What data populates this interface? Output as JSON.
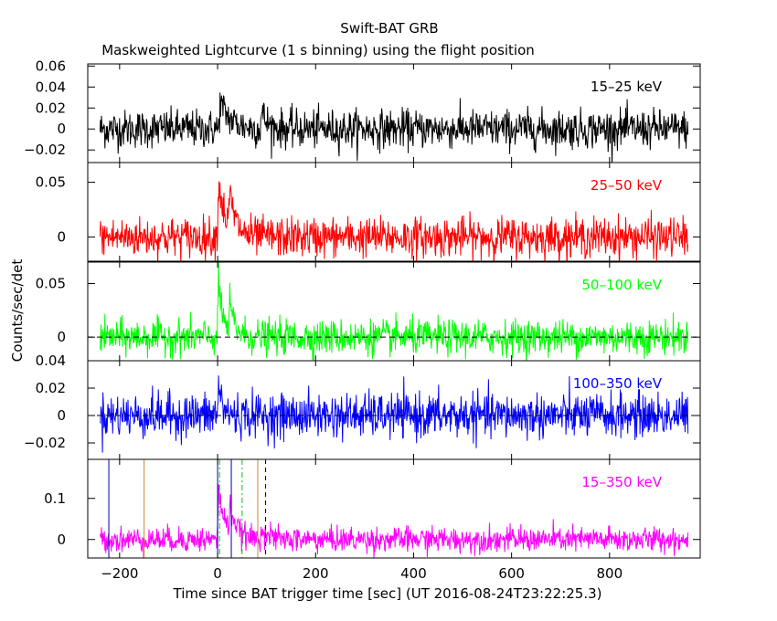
{
  "chart_data": {
    "type": "line",
    "title": "Swift-BAT GRB",
    "subtitle": "Maskweighted Lightcurve (1 s binning) using the flight position",
    "xlabel": "Time since BAT trigger time [sec] (UT 2016-08-24T23:22:25.3)",
    "ylabel": "Counts/sec/det",
    "xlim": [
      -265,
      985
    ],
    "x_range_data": [
      -240,
      960
    ],
    "x_ticks": [
      -200,
      0,
      200,
      400,
      600,
      800
    ],
    "x_tick_labels": [
      "−200",
      "0",
      "200",
      "400",
      "600",
      "800"
    ],
    "panels": [
      {
        "band": "15–25 keV",
        "color": "#000000",
        "ylim": [
          -0.032,
          0.062
        ],
        "y_ticks": [
          -0.02,
          0,
          0.02,
          0.04,
          0.06
        ],
        "y_tick_labels": [
          "−0.02",
          "0",
          "0.02",
          "0.04",
          "0.06"
        ],
        "noise_sigma": 0.009,
        "pulses": [
          {
            "t0": 5,
            "amp": 0.025,
            "tau": 22
          },
          {
            "t0": 90,
            "amp": 0.015,
            "tau": 12
          }
        ],
        "dashed_zero": false
      },
      {
        "band": "25–50 keV",
        "color": "#ff0000",
        "ylim": [
          -0.022,
          0.068
        ],
        "y_ticks": [
          0,
          0.05
        ],
        "y_tick_labels": [
          "0",
          "0.05"
        ],
        "noise_sigma": 0.009,
        "pulses": [
          {
            "t0": 2,
            "amp": 0.05,
            "tau": 15
          },
          {
            "t0": 25,
            "amp": 0.03,
            "tau": 12
          }
        ],
        "dashed_zero": false
      },
      {
        "band": "50–100 keV",
        "color": "#00ff00",
        "ylim": [
          -0.022,
          0.07
        ],
        "y_ticks": [
          0,
          0.05
        ],
        "y_tick_labels": [
          "0",
          "0.05"
        ],
        "noise_sigma": 0.008,
        "pulses": [
          {
            "t0": 2,
            "amp": 0.05,
            "tau": 10
          },
          {
            "t0": 25,
            "amp": 0.025,
            "tau": 12
          }
        ],
        "dashed_zero": true
      },
      {
        "band": "100–350 keV",
        "color": "#0000ff",
        "ylim": [
          -0.032,
          0.04
        ],
        "y_ticks": [
          -0.02,
          0,
          0.02,
          0.04
        ],
        "y_tick_labels": [
          "−0.02",
          "0",
          "0.02",
          "0.04"
        ],
        "noise_sigma": 0.008,
        "pulses": [
          {
            "t0": 2,
            "amp": 0.022,
            "tau": 8
          }
        ],
        "dashed_zero": true
      },
      {
        "band": "15–350 keV",
        "color": "#ff00ff",
        "ylim": [
          -0.045,
          0.195
        ],
        "y_ticks": [
          0,
          0.1
        ],
        "y_tick_labels": [
          "0",
          "0.1"
        ],
        "noise_sigma": 0.015,
        "pulses": [
          {
            "t0": 2,
            "amp": 0.12,
            "tau": 14
          },
          {
            "t0": 25,
            "amp": 0.06,
            "tau": 14
          },
          {
            "t0": 90,
            "amp": 0.03,
            "tau": 12
          }
        ],
        "dashed_zero": false,
        "markers": [
          {
            "t": -222,
            "color": "#0000aa",
            "style": "solid"
          },
          {
            "t": 0,
            "color": "#0000aa",
            "style": "solid"
          },
          {
            "t": 28,
            "color": "#0000aa",
            "style": "solid"
          },
          {
            "t": -150,
            "color": "#cc8833",
            "style": "solid"
          },
          {
            "t": 82,
            "color": "#cc8833",
            "style": "solid"
          },
          {
            "t": 4,
            "color": "#00cc00",
            "style": "dashdot"
          },
          {
            "t": 50,
            "color": "#00cc00",
            "style": "dashdot"
          },
          {
            "t": 98,
            "color": "#000000",
            "style": "dashed"
          }
        ]
      }
    ]
  }
}
